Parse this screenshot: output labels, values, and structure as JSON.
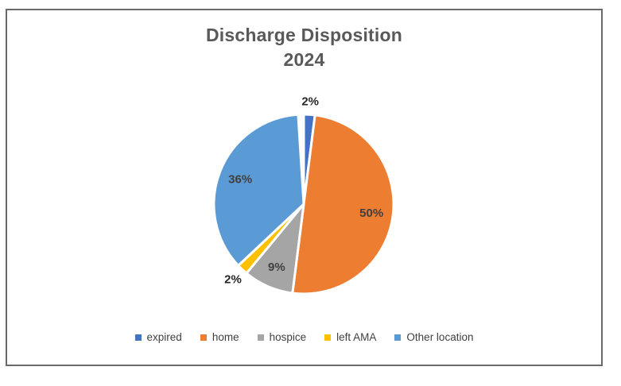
{
  "chart_data": {
    "type": "pie",
    "title": "Discharge Disposition",
    "subtitle": "2024",
    "categories": [
      "expired",
      "home",
      "hospice",
      "left AMA",
      "Other location"
    ],
    "values": [
      2,
      50,
      9,
      2,
      36
    ],
    "labels": [
      "2%",
      "50%",
      "9%",
      "2%",
      "36%"
    ],
    "colors": [
      "#4472C4",
      "#ED7D31",
      "#A5A5A5",
      "#FFC000",
      "#5B9BD5"
    ],
    "start_angle_deg": 0,
    "direction": "clockwise",
    "slice_border_color": "#FFFFFF",
    "legend_position": "bottom",
    "title_color": "#595959",
    "label_color_inside": "#404040",
    "label_color_outside": "#262626",
    "outside_label_threshold_pct": 5
  },
  "legend": {
    "items": [
      {
        "label": "expired"
      },
      {
        "label": "home"
      },
      {
        "label": "hospice"
      },
      {
        "label": "left AMA"
      },
      {
        "label": "Other location"
      }
    ]
  }
}
